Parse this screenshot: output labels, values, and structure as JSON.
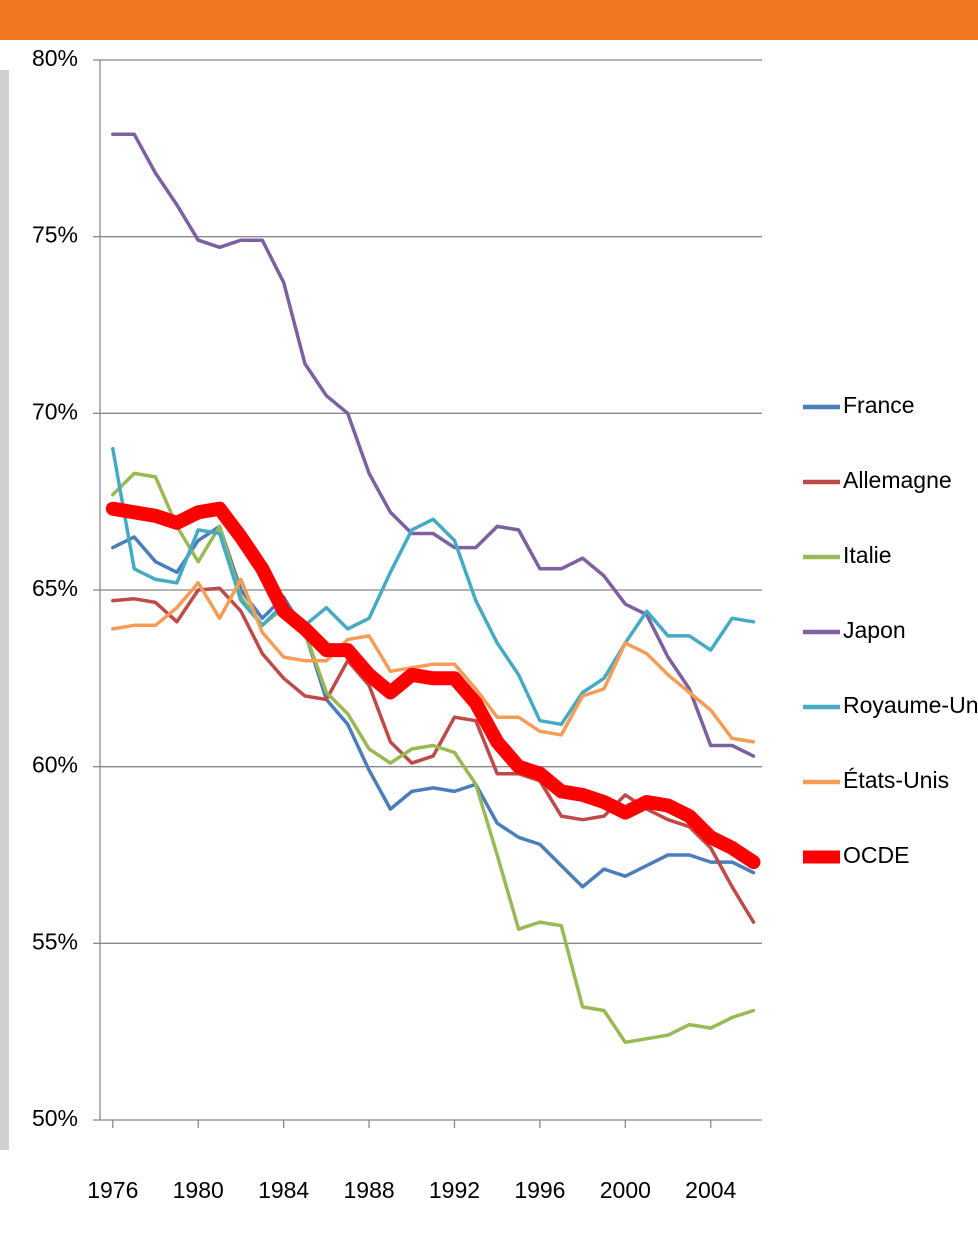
{
  "chart_data": {
    "type": "line",
    "x": [
      1976,
      1977,
      1978,
      1979,
      1980,
      1981,
      1982,
      1983,
      1984,
      1985,
      1986,
      1987,
      1988,
      1989,
      1990,
      1991,
      1992,
      1993,
      1994,
      1995,
      1996,
      1997,
      1998,
      1999,
      2000,
      2001,
      2002,
      2003,
      2004,
      2005,
      2006
    ],
    "xlim": [
      1975.4,
      2006.4
    ],
    "xticks": [
      1976,
      1980,
      1984,
      1988,
      1992,
      1996,
      2000,
      2004
    ],
    "ylim": [
      50,
      80
    ],
    "yticks": [
      {
        "value": 50,
        "label": "50%"
      },
      {
        "value": 55,
        "label": "55%"
      },
      {
        "value": 60,
        "label": "60%"
      },
      {
        "value": 65,
        "label": "65%"
      },
      {
        "value": 70,
        "label": "70%"
      },
      {
        "value": 75,
        "label": "75%"
      },
      {
        "value": 80,
        "label": "80%"
      }
    ],
    "grid": true,
    "legend": "right",
    "series": [
      {
        "name": "France",
        "color": "#4a7ebb",
        "line_width": 3.5,
        "values": [
          66.2,
          66.5,
          65.8,
          65.5,
          66.4,
          66.8,
          65.0,
          64.2,
          64.8,
          63.8,
          61.9,
          61.2,
          59.9,
          58.8,
          59.3,
          59.4,
          59.3,
          59.5,
          58.4,
          58.0,
          57.8,
          57.2,
          56.6,
          57.1,
          56.9,
          57.2,
          57.5,
          57.5,
          57.3,
          57.3,
          57.0
        ]
      },
      {
        "name": "Allemagne",
        "color": "#be4b48",
        "line_width": 3.5,
        "values": [
          64.7,
          64.75,
          64.65,
          64.1,
          65.0,
          65.05,
          64.4,
          63.2,
          62.5,
          62.0,
          61.9,
          63.0,
          62.3,
          60.7,
          60.1,
          60.3,
          61.4,
          61.3,
          59.8,
          59.8,
          59.6,
          58.6,
          58.5,
          58.6,
          59.2,
          58.8,
          58.5,
          58.3,
          57.7,
          56.6,
          55.6
        ]
      },
      {
        "name": "Italie",
        "color": "#98b954",
        "line_width": 3.5,
        "values": [
          67.7,
          68.3,
          68.2,
          66.8,
          65.8,
          66.8,
          64.8,
          64.0,
          64.5,
          63.8,
          62.1,
          61.5,
          60.5,
          60.1,
          60.5,
          60.6,
          60.4,
          59.5,
          57.5,
          55.4,
          55.6,
          55.5,
          53.2,
          53.1,
          52.2,
          52.3,
          52.4,
          52.7,
          52.6,
          52.9,
          53.1
        ]
      },
      {
        "name": "Japon",
        "color": "#7d60a0",
        "line_width": 3.5,
        "values": [
          77.9,
          77.9,
          76.8,
          75.9,
          74.9,
          74.7,
          74.9,
          74.9,
          73.7,
          71.4,
          70.5,
          70.0,
          68.3,
          67.2,
          66.6,
          66.6,
          66.2,
          66.2,
          66.8,
          66.7,
          65.6,
          65.6,
          65.9,
          65.4,
          64.6,
          64.3,
          63.1,
          62.2,
          60.6,
          60.6,
          60.3
        ]
      },
      {
        "name": "Royaume-Uni",
        "color": "#46aac5",
        "line_width": 3.5,
        "values": [
          69.0,
          65.6,
          65.3,
          65.2,
          66.7,
          66.6,
          64.7,
          64.0,
          64.6,
          64.0,
          64.5,
          63.9,
          64.2,
          65.5,
          66.7,
          67.0,
          66.4,
          64.7,
          63.5,
          62.6,
          61.3,
          61.2,
          62.1,
          62.5,
          63.5,
          64.4,
          63.7,
          63.7,
          63.3,
          64.2,
          64.1
        ]
      },
      {
        "name": "États-Unis",
        "color": "#f59d56",
        "line_width": 3.5,
        "values": [
          63.9,
          64.0,
          64.0,
          64.5,
          65.2,
          64.2,
          65.3,
          63.8,
          63.1,
          63.0,
          63.0,
          63.6,
          63.7,
          62.7,
          62.8,
          62.9,
          62.9,
          62.2,
          61.4,
          61.4,
          61.0,
          60.9,
          62.0,
          62.2,
          63.5,
          63.2,
          62.6,
          62.1,
          61.6,
          60.8,
          60.7
        ]
      },
      {
        "name": "OCDE",
        "color": "#ff0000",
        "line_width": 14,
        "values": [
          67.3,
          67.2,
          67.1,
          66.9,
          67.2,
          67.3,
          66.5,
          65.6,
          64.4,
          63.9,
          63.3,
          63.3,
          62.6,
          62.1,
          62.6,
          62.5,
          62.5,
          61.8,
          60.7,
          60.0,
          59.8,
          59.3,
          59.2,
          59.0,
          58.7,
          59.0,
          58.9,
          58.6,
          58.0,
          57.7,
          57.3
        ]
      }
    ]
  }
}
